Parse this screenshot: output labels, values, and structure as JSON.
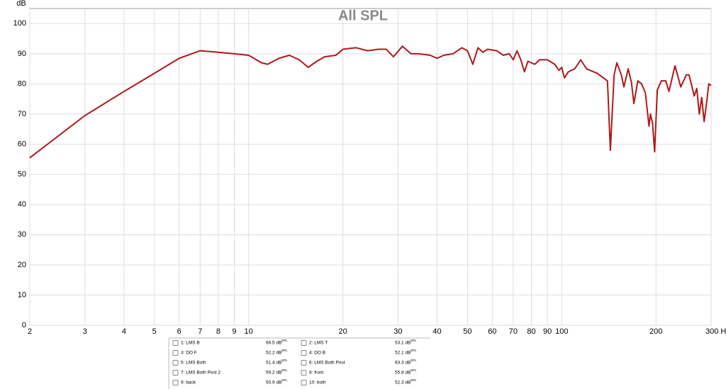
{
  "chart_data": {
    "type": "line",
    "title": "All SPL",
    "y_unit": "dB",
    "color": "#b01818",
    "grid": true,
    "x_scale": "log",
    "xlim": [
      2,
      300
    ],
    "ylim": [
      0,
      105
    ],
    "xticks": [
      2,
      3,
      4,
      5,
      6,
      7,
      8,
      9,
      10,
      20,
      30,
      40,
      50,
      60,
      70,
      80,
      90,
      100,
      200,
      {
        "value": 300,
        "label": "300 Hz"
      }
    ],
    "yticks": [
      0,
      10,
      20,
      30,
      40,
      50,
      60,
      70,
      80,
      90,
      100
    ],
    "x": [
      2,
      3,
      4,
      5,
      6,
      7,
      8,
      9,
      10,
      11,
      11.5,
      12.5,
      13.5,
      14.5,
      15.5,
      16.5,
      17.5,
      19,
      20,
      22,
      24,
      26,
      27.5,
      29,
      31,
      33,
      35,
      38,
      40,
      42,
      45,
      48,
      50,
      52,
      54,
      56,
      58,
      62,
      65,
      68,
      70,
      72,
      74,
      76,
      78,
      82,
      85,
      90,
      95,
      98,
      100,
      102,
      105,
      110,
      115,
      120,
      130,
      140,
      143,
      147,
      150,
      155,
      158,
      163,
      167,
      170,
      175,
      180,
      185,
      190,
      192,
      195,
      198,
      202,
      208,
      215,
      220,
      230,
      240,
      250,
      255,
      265,
      270,
      275,
      280,
      285,
      290,
      295,
      300
    ],
    "values": [
      55.5,
      69.5,
      77.5,
      83.5,
      88.5,
      91,
      90.5,
      90,
      89.5,
      87,
      86.5,
      88.5,
      89.5,
      88,
      85.5,
      87.5,
      89,
      89.5,
      91.5,
      92,
      91,
      91.5,
      91.5,
      89,
      92.5,
      90,
      90,
      89.5,
      88.5,
      89.5,
      90,
      92,
      91,
      86.5,
      92,
      90.5,
      91.5,
      91,
      89.5,
      90,
      88,
      91,
      88,
      84,
      87.5,
      86.5,
      88,
      88,
      86.5,
      84.5,
      85.5,
      82,
      84,
      85,
      88,
      85,
      83.5,
      81,
      58,
      83,
      87,
      83,
      79,
      85,
      80.5,
      73.5,
      81,
      80,
      77,
      66,
      70,
      67,
      57.5,
      78,
      81,
      81,
      77.5,
      86,
      79,
      83,
      83,
      76,
      78.5,
      70,
      75.5,
      67.5,
      73.5,
      80,
      79.5
    ]
  },
  "legend_panel": {
    "entries": [
      {
        "name": "1: LMS B",
        "reading": "66.5 dB",
        "unit": "SPL",
        "color": "#1a9a7a"
      },
      {
        "name": "2: LMS T",
        "reading": "53.1 dB",
        "unit": "SPL",
        "color": "#1a8a9a"
      },
      {
        "name": "3: DO F",
        "reading": "52.2 dB",
        "unit": "SPL",
        "color": "#a01010"
      },
      {
        "name": "4: DO B",
        "reading": "52.1 dB",
        "unit": "SPL",
        "color": "#d08a10"
      },
      {
        "name": "5: LMS Both",
        "reading": "51.4 dB",
        "unit": "SPL",
        "color": "#5a4aa0"
      },
      {
        "name": "6: LMS Both Post",
        "reading": "63.3 dB",
        "unit": "SPL",
        "color": "#1a9a4a"
      },
      {
        "name": "7: LMS Both Post 2",
        "reading": "59.2 dB",
        "unit": "SPL",
        "color": "#8a2aa0"
      },
      {
        "name": "8: front",
        "reading": "55.8 dB",
        "unit": "SPL",
        "color": "#1a6a1a"
      },
      {
        "name": "9: back",
        "reading": "50.9 dB",
        "unit": "SPL",
        "color": "#7a3aa0"
      },
      {
        "name": "10: both",
        "reading": "52.3 dB",
        "unit": "SPL",
        "color": "#1a2a6a"
      }
    ]
  }
}
